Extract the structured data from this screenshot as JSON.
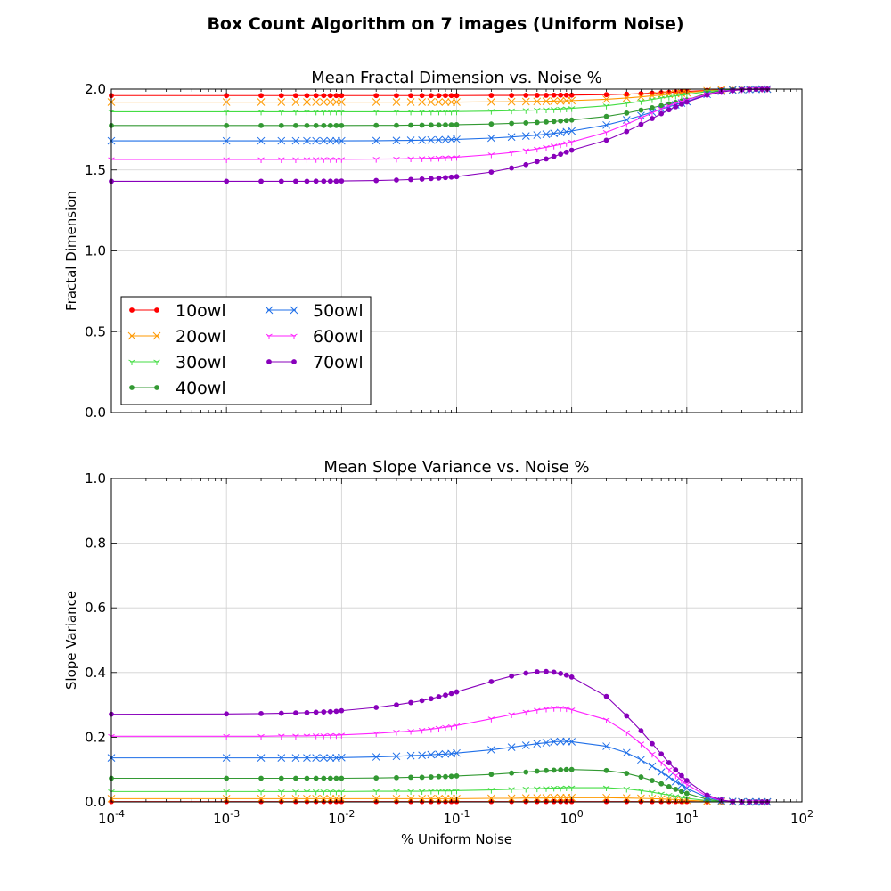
{
  "figure_title": "Box Count Algorithm on 7 images (Uniform Noise)",
  "colors": {
    "10owl": "#ff0000",
    "20owl": "#ff9900",
    "30owl": "#44dd44",
    "40owl": "#339933",
    "50owl": "#1f6fe8",
    "60owl": "#ff22ff",
    "70owl": "#8800bb"
  },
  "chart_data": [
    {
      "type": "line",
      "title": "Mean Fractal Dimension vs. Noise %",
      "xlabel": "",
      "ylabel": "Fractal Dimension",
      "xscale": "log",
      "xlim": [
        0.0001,
        100
      ],
      "ylim": [
        0.0,
        2.0
      ],
      "yticks": [
        "0.0",
        "0.5",
        "1.0",
        "1.5",
        "2.0"
      ],
      "grid": true,
      "legend": "lower-left, 2 columns",
      "x": [
        0.0001,
        0.001,
        0.002,
        0.003,
        0.004,
        0.005,
        0.006,
        0.007,
        0.008,
        0.009,
        0.01,
        0.02,
        0.03,
        0.04,
        0.05,
        0.06,
        0.07,
        0.08,
        0.09,
        0.1,
        0.2,
        0.3,
        0.4,
        0.5,
        0.6,
        0.7,
        0.8,
        0.9,
        1,
        2,
        3,
        4,
        5,
        6,
        7,
        8,
        9,
        10,
        15,
        20,
        25,
        30,
        35,
        40,
        45,
        50
      ],
      "series": [
        {
          "name": "10owl",
          "marker": "dot",
          "values": [
            1.96,
            1.96,
            1.96,
            1.96,
            1.96,
            1.96,
            1.96,
            1.96,
            1.96,
            1.96,
            1.96,
            1.96,
            1.96,
            1.96,
            1.96,
            1.96,
            1.96,
            1.96,
            1.96,
            1.96,
            1.961,
            1.961,
            1.962,
            1.962,
            1.962,
            1.963,
            1.963,
            1.963,
            1.963,
            1.966,
            1.969,
            1.972,
            1.975,
            1.978,
            1.98,
            1.982,
            1.984,
            1.986,
            1.992,
            1.995,
            1.997,
            1.998,
            1.999,
            1.999,
            1.999,
            2.0
          ]
        },
        {
          "name": "20owl",
          "marker": "x",
          "values": [
            1.92,
            1.92,
            1.92,
            1.92,
            1.92,
            1.92,
            1.92,
            1.92,
            1.92,
            1.92,
            1.92,
            1.92,
            1.92,
            1.92,
            1.92,
            1.92,
            1.92,
            1.92,
            1.92,
            1.92,
            1.921,
            1.922,
            1.923,
            1.924,
            1.925,
            1.926,
            1.927,
            1.928,
            1.929,
            1.937,
            1.945,
            1.952,
            1.959,
            1.964,
            1.968,
            1.972,
            1.975,
            1.978,
            1.99,
            1.995,
            1.997,
            1.998,
            1.999,
            1.999,
            2.0,
            2.0
          ]
        },
        {
          "name": "30owl",
          "marker": "tri",
          "values": [
            1.86,
            1.86,
            1.86,
            1.86,
            1.86,
            1.86,
            1.86,
            1.86,
            1.86,
            1.86,
            1.86,
            1.86,
            1.86,
            1.86,
            1.86,
            1.86,
            1.86,
            1.86,
            1.86,
            1.861,
            1.864,
            1.867,
            1.869,
            1.871,
            1.873,
            1.875,
            1.877,
            1.879,
            1.881,
            1.897,
            1.912,
            1.925,
            1.936,
            1.945,
            1.952,
            1.958,
            1.963,
            1.967,
            1.985,
            1.993,
            1.996,
            1.998,
            1.999,
            1.999,
            2.0,
            2.0
          ]
        },
        {
          "name": "40owl",
          "marker": "dot",
          "values": [
            1.775,
            1.775,
            1.775,
            1.775,
            1.775,
            1.775,
            1.775,
            1.775,
            1.775,
            1.775,
            1.775,
            1.776,
            1.776,
            1.777,
            1.777,
            1.778,
            1.778,
            1.779,
            1.779,
            1.78,
            1.784,
            1.788,
            1.791,
            1.794,
            1.797,
            1.8,
            1.803,
            1.806,
            1.809,
            1.831,
            1.852,
            1.87,
            1.885,
            1.898,
            1.909,
            1.918,
            1.926,
            1.933,
            1.975,
            1.99,
            1.995,
            1.997,
            1.998,
            1.999,
            2.0,
            2.0
          ]
        },
        {
          "name": "50owl",
          "marker": "x",
          "values": [
            1.68,
            1.68,
            1.68,
            1.68,
            1.68,
            1.68,
            1.68,
            1.68,
            1.68,
            1.68,
            1.68,
            1.681,
            1.682,
            1.683,
            1.684,
            1.685,
            1.686,
            1.687,
            1.688,
            1.689,
            1.697,
            1.704,
            1.71,
            1.716,
            1.721,
            1.726,
            1.731,
            1.736,
            1.741,
            1.778,
            1.81,
            1.836,
            1.858,
            1.876,
            1.891,
            1.903,
            1.914,
            1.923,
            1.968,
            1.987,
            1.994,
            1.997,
            1.998,
            1.999,
            2.0,
            2.0
          ]
        },
        {
          "name": "60owl",
          "marker": "tri",
          "values": [
            1.565,
            1.565,
            1.565,
            1.565,
            1.565,
            1.565,
            1.566,
            1.566,
            1.566,
            1.566,
            1.566,
            1.567,
            1.568,
            1.57,
            1.571,
            1.573,
            1.574,
            1.576,
            1.577,
            1.579,
            1.595,
            1.608,
            1.62,
            1.63,
            1.64,
            1.649,
            1.657,
            1.665,
            1.673,
            1.733,
            1.783,
            1.822,
            1.853,
            1.878,
            1.897,
            1.912,
            1.924,
            1.934,
            1.968,
            1.985,
            1.993,
            1.997,
            1.998,
            1.999,
            2.0,
            2.0
          ]
        },
        {
          "name": "70owl",
          "marker": "dot",
          "values": [
            1.43,
            1.43,
            1.43,
            1.43,
            1.43,
            1.43,
            1.431,
            1.431,
            1.431,
            1.431,
            1.432,
            1.435,
            1.438,
            1.441,
            1.444,
            1.447,
            1.45,
            1.453,
            1.456,
            1.459,
            1.487,
            1.512,
            1.533,
            1.552,
            1.568,
            1.583,
            1.597,
            1.61,
            1.622,
            1.684,
            1.738,
            1.782,
            1.818,
            1.848,
            1.872,
            1.891,
            1.907,
            1.92,
            1.963,
            1.982,
            1.991,
            1.996,
            1.998,
            1.999,
            2.0,
            2.0
          ]
        }
      ]
    },
    {
      "type": "line",
      "title": "Mean Slope Variance vs. Noise %",
      "xlabel": "% Uniform Noise",
      "ylabel": "Slope Variance",
      "xscale": "log",
      "xlim": [
        0.0001,
        100
      ],
      "ylim": [
        0.0,
        1.0
      ],
      "yticks": [
        "0.0",
        "0.2",
        "0.4",
        "0.6",
        "0.8",
        "1.0"
      ],
      "xticks": [
        "-4",
        "-3",
        "-2",
        "-1",
        "0",
        "1",
        "2"
      ],
      "grid": true,
      "x": [
        0.0001,
        0.001,
        0.002,
        0.003,
        0.004,
        0.005,
        0.006,
        0.007,
        0.008,
        0.009,
        0.01,
        0.02,
        0.03,
        0.04,
        0.05,
        0.06,
        0.07,
        0.08,
        0.09,
        0.1,
        0.2,
        0.3,
        0.4,
        0.5,
        0.6,
        0.7,
        0.8,
        0.9,
        1,
        2,
        3,
        4,
        5,
        6,
        7,
        8,
        9,
        10,
        15,
        20,
        25,
        30,
        35,
        40,
        45,
        50
      ],
      "series": [
        {
          "name": "10owl",
          "marker": "dot",
          "values": [
            0.001,
            0.001,
            0.001,
            0.001,
            0.001,
            0.001,
            0.001,
            0.001,
            0.001,
            0.001,
            0.001,
            0.001,
            0.001,
            0.001,
            0.001,
            0.001,
            0.001,
            0.001,
            0.001,
            0.001,
            0.001,
            0.001,
            0.001,
            0.001,
            0.001,
            0.001,
            0.001,
            0.001,
            0.001,
            0.001,
            0.001,
            0.001,
            0.001,
            0.001,
            0.001,
            0.001,
            0.001,
            0.001,
            0.0,
            0.0,
            0.0,
            0.0,
            0.0,
            0.0,
            0.0,
            0.0
          ]
        },
        {
          "name": "20owl",
          "marker": "x",
          "values": [
            0.01,
            0.01,
            0.01,
            0.01,
            0.01,
            0.01,
            0.01,
            0.01,
            0.01,
            0.01,
            0.01,
            0.01,
            0.01,
            0.01,
            0.01,
            0.01,
            0.01,
            0.01,
            0.01,
            0.01,
            0.011,
            0.011,
            0.012,
            0.012,
            0.012,
            0.013,
            0.013,
            0.013,
            0.013,
            0.013,
            0.012,
            0.011,
            0.01,
            0.009,
            0.008,
            0.007,
            0.006,
            0.005,
            0.002,
            0.001,
            0.0,
            0.0,
            0.0,
            0.0,
            0.0,
            0.0
          ]
        },
        {
          "name": "30owl",
          "marker": "tri",
          "values": [
            0.032,
            0.032,
            0.032,
            0.032,
            0.032,
            0.032,
            0.032,
            0.032,
            0.032,
            0.032,
            0.032,
            0.033,
            0.033,
            0.033,
            0.033,
            0.034,
            0.034,
            0.034,
            0.034,
            0.035,
            0.037,
            0.039,
            0.04,
            0.041,
            0.042,
            0.043,
            0.043,
            0.044,
            0.044,
            0.044,
            0.04,
            0.035,
            0.03,
            0.025,
            0.021,
            0.017,
            0.014,
            0.011,
            0.004,
            0.001,
            0.0,
            0.0,
            0.0,
            0.0,
            0.0,
            0.0
          ]
        },
        {
          "name": "40owl",
          "marker": "dot",
          "values": [
            0.073,
            0.073,
            0.073,
            0.073,
            0.073,
            0.073,
            0.073,
            0.073,
            0.073,
            0.073,
            0.073,
            0.074,
            0.075,
            0.076,
            0.076,
            0.077,
            0.078,
            0.078,
            0.079,
            0.08,
            0.085,
            0.089,
            0.092,
            0.095,
            0.097,
            0.098,
            0.099,
            0.1,
            0.1,
            0.097,
            0.088,
            0.077,
            0.066,
            0.056,
            0.047,
            0.039,
            0.032,
            0.026,
            0.008,
            0.002,
            0.001,
            0.0,
            0.0,
            0.0,
            0.0,
            0.0
          ]
        },
        {
          "name": "50owl",
          "marker": "x",
          "values": [
            0.136,
            0.136,
            0.136,
            0.136,
            0.136,
            0.136,
            0.136,
            0.136,
            0.136,
            0.136,
            0.137,
            0.139,
            0.141,
            0.143,
            0.144,
            0.146,
            0.147,
            0.148,
            0.149,
            0.151,
            0.161,
            0.169,
            0.175,
            0.18,
            0.183,
            0.186,
            0.187,
            0.187,
            0.186,
            0.172,
            0.152,
            0.13,
            0.11,
            0.092,
            0.077,
            0.063,
            0.052,
            0.042,
            0.013,
            0.004,
            0.001,
            0.0,
            0.0,
            0.0,
            0.0,
            0.0
          ]
        },
        {
          "name": "60owl",
          "marker": "tri",
          "values": [
            0.203,
            0.203,
            0.203,
            0.204,
            0.204,
            0.204,
            0.205,
            0.205,
            0.206,
            0.206,
            0.207,
            0.212,
            0.216,
            0.219,
            0.222,
            0.225,
            0.228,
            0.231,
            0.233,
            0.236,
            0.257,
            0.27,
            0.278,
            0.284,
            0.288,
            0.29,
            0.29,
            0.289,
            0.285,
            0.254,
            0.215,
            0.18,
            0.148,
            0.122,
            0.1,
            0.082,
            0.067,
            0.054,
            0.017,
            0.005,
            0.001,
            0.0,
            0.0,
            0.0,
            0.0,
            0.0
          ]
        },
        {
          "name": "70owl",
          "marker": "dot",
          "values": [
            0.271,
            0.272,
            0.273,
            0.274,
            0.275,
            0.276,
            0.277,
            0.278,
            0.279,
            0.28,
            0.282,
            0.292,
            0.3,
            0.307,
            0.313,
            0.319,
            0.325,
            0.33,
            0.335,
            0.34,
            0.372,
            0.389,
            0.398,
            0.402,
            0.403,
            0.401,
            0.397,
            0.392,
            0.386,
            0.326,
            0.266,
            0.22,
            0.18,
            0.148,
            0.121,
            0.099,
            0.081,
            0.066,
            0.021,
            0.006,
            0.001,
            0.0,
            0.0,
            0.0,
            0.0,
            0.0
          ]
        }
      ]
    }
  ]
}
